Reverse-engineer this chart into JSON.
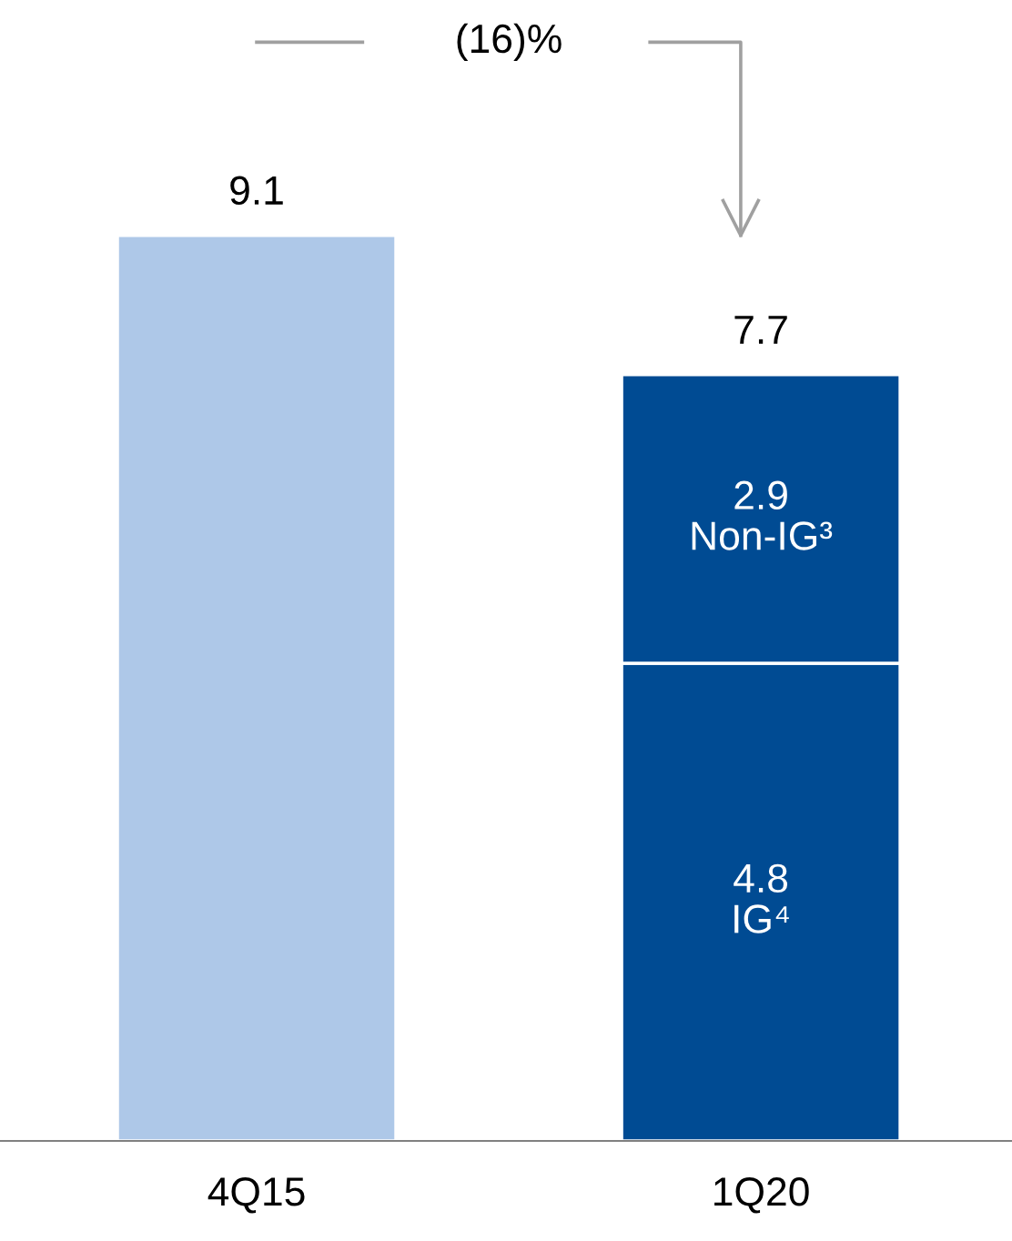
{
  "chart_data": {
    "type": "bar",
    "stacked": true,
    "categories": [
      "4Q15",
      "1Q20"
    ],
    "series": [
      {
        "color": "#aec8e8",
        "values": [
          9.1,
          null
        ]
      },
      {
        "name": "IG⁴",
        "color": "#004b93",
        "values": [
          null,
          4.8
        ],
        "value_labels": [
          null,
          "4.8"
        ]
      },
      {
        "name": "Non-IG³",
        "color": "#004b93",
        "values": [
          null,
          2.9
        ],
        "value_labels": [
          null,
          "2.9"
        ]
      }
    ],
    "totals": [
      "9.1",
      "7.7"
    ],
    "annotations": [
      "(16)%"
    ],
    "legend": false,
    "grid": false
  }
}
